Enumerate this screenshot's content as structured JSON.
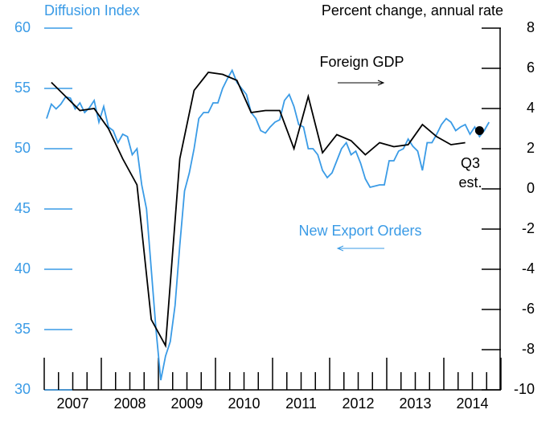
{
  "chart_data": {
    "type": "line",
    "y_label": "Diffusion Index",
    "y2_label": "Percent change, annual rate",
    "annotations": [
      "Foreign GDP",
      "New Export Orders",
      "Q3",
      "est."
    ],
    "xlim": [
      2007,
      2015
    ],
    "xticks": [
      2007,
      2008,
      2009,
      2010,
      2011,
      2012,
      2013,
      2014,
      2015
    ],
    "xminor_ticks": [
      2007.25,
      2007.5,
      2007.75,
      2008.25,
      2008.5,
      2008.75,
      2009.25,
      2009.5,
      2009.75,
      2010.25,
      2010.5,
      2010.75,
      2011.25,
      2011.5,
      2011.75,
      2012.25,
      2012.5,
      2012.75,
      2013.25,
      2013.5,
      2013.75,
      2014.25,
      2014.5,
      2014.75
    ],
    "xlabels": [
      {
        "value": 2007.5,
        "label": "2007"
      },
      {
        "value": 2008.5,
        "label": "2008"
      },
      {
        "value": 2009.5,
        "label": "2009"
      },
      {
        "value": 2010.5,
        "label": "2010"
      },
      {
        "value": 2011.5,
        "label": "2011"
      },
      {
        "value": 2012.5,
        "label": "2012"
      },
      {
        "value": 2013.5,
        "label": "2013"
      },
      {
        "value": 2014.5,
        "label": "2014"
      }
    ],
    "ylim": [
      30,
      60
    ],
    "yticks": [
      30,
      35,
      40,
      45,
      50,
      55,
      60
    ],
    "y2lim": [
      -10,
      8
    ],
    "y2ticks": [
      -10,
      -8,
      -6,
      -4,
      -2,
      0,
      2,
      4,
      6,
      8
    ],
    "series": [
      {
        "name": "New Export Orders",
        "color": "#3a9be6",
        "x": [
          2007.042,
          2007.125,
          2007.208,
          2007.292,
          2007.375,
          2007.458,
          2007.542,
          2007.625,
          2007.708,
          2007.792,
          2007.875,
          2007.958,
          2008.042,
          2008.125,
          2008.208,
          2008.292,
          2008.375,
          2008.458,
          2008.542,
          2008.625,
          2008.708,
          2008.792,
          2008.875,
          2008.958,
          2009.042,
          2009.125,
          2009.208,
          2009.292,
          2009.375,
          2009.458,
          2009.542,
          2009.625,
          2009.708,
          2009.792,
          2009.875,
          2009.958,
          2010.042,
          2010.125,
          2010.208,
          2010.292,
          2010.375,
          2010.458,
          2010.542,
          2010.625,
          2010.708,
          2010.792,
          2010.875,
          2010.958,
          2011.042,
          2011.125,
          2011.208,
          2011.292,
          2011.375,
          2011.458,
          2011.542,
          2011.625,
          2011.708,
          2011.792,
          2011.875,
          2011.958,
          2012.042,
          2012.125,
          2012.208,
          2012.292,
          2012.375,
          2012.458,
          2012.542,
          2012.625,
          2012.708,
          2012.792,
          2012.875,
          2012.958,
          2013.042,
          2013.125,
          2013.208,
          2013.292,
          2013.375,
          2013.458,
          2013.542,
          2013.625,
          2013.708,
          2013.792,
          2013.875,
          2013.958,
          2014.042,
          2014.125,
          2014.208,
          2014.292,
          2014.375,
          2014.458,
          2014.542,
          2014.625,
          2014.708,
          2014.792
        ],
        "values": [
          52.5,
          53.7,
          53.3,
          53.7,
          54.3,
          54.2,
          53.3,
          53.8,
          53.0,
          53.4,
          54.0,
          52.2,
          53.5,
          51.8,
          51.5,
          50.5,
          51.2,
          51.0,
          49.5,
          50.0,
          47.0,
          45.0,
          40.0,
          35.0,
          30.8,
          32.8,
          34.0,
          37.0,
          42.0,
          46.5,
          48.0,
          50.0,
          52.5,
          53.0,
          53.0,
          53.8,
          53.8,
          55.0,
          55.8,
          56.5,
          55.5,
          55.0,
          54.5,
          53.0,
          52.5,
          51.5,
          51.3,
          51.8,
          52.2,
          52.4,
          54.0,
          54.5,
          53.5,
          52.0,
          51.8,
          50.0,
          50.0,
          49.5,
          48.2,
          47.6,
          48.0,
          49.0,
          50.0,
          50.5,
          49.5,
          49.8,
          48.8,
          47.5,
          46.8,
          46.9,
          47.0,
          47.0,
          49.0,
          49.0,
          49.8,
          50.0,
          50.8,
          50.2,
          49.8,
          48.2,
          50.5,
          50.5,
          51.2,
          52.0,
          52.5,
          52.2,
          51.5,
          51.8,
          52.0,
          51.2,
          51.8,
          51.0,
          51.5,
          52.2
        ]
      },
      {
        "name": "Foreign GDP",
        "color": "#000000",
        "axis": "y2",
        "x": [
          2007.125,
          2007.375,
          2007.625,
          2007.875,
          2008.125,
          2008.375,
          2008.625,
          2008.875,
          2009.125,
          2009.375,
          2009.625,
          2009.875,
          2010.125,
          2010.375,
          2010.625,
          2010.875,
          2011.125,
          2011.375,
          2011.625,
          2011.875,
          2012.125,
          2012.375,
          2012.625,
          2012.875,
          2013.125,
          2013.375,
          2013.625,
          2013.875,
          2014.125,
          2014.375
        ],
        "values": [
          5.3,
          4.6,
          3.9,
          4.0,
          3.0,
          1.5,
          0.2,
          -6.5,
          -7.8,
          1.5,
          4.9,
          5.8,
          5.7,
          5.4,
          3.8,
          3.9,
          3.9,
          2.0,
          4.6,
          1.8,
          2.7,
          2.4,
          1.7,
          2.3,
          2.1,
          2.2,
          3.2,
          2.6,
          2.2,
          2.3
        ]
      },
      {
        "name": "Q3 est.",
        "color": "#000000",
        "axis": "y2",
        "x": [
          2014.625
        ],
        "values": [
          2.9
        ]
      }
    ]
  }
}
